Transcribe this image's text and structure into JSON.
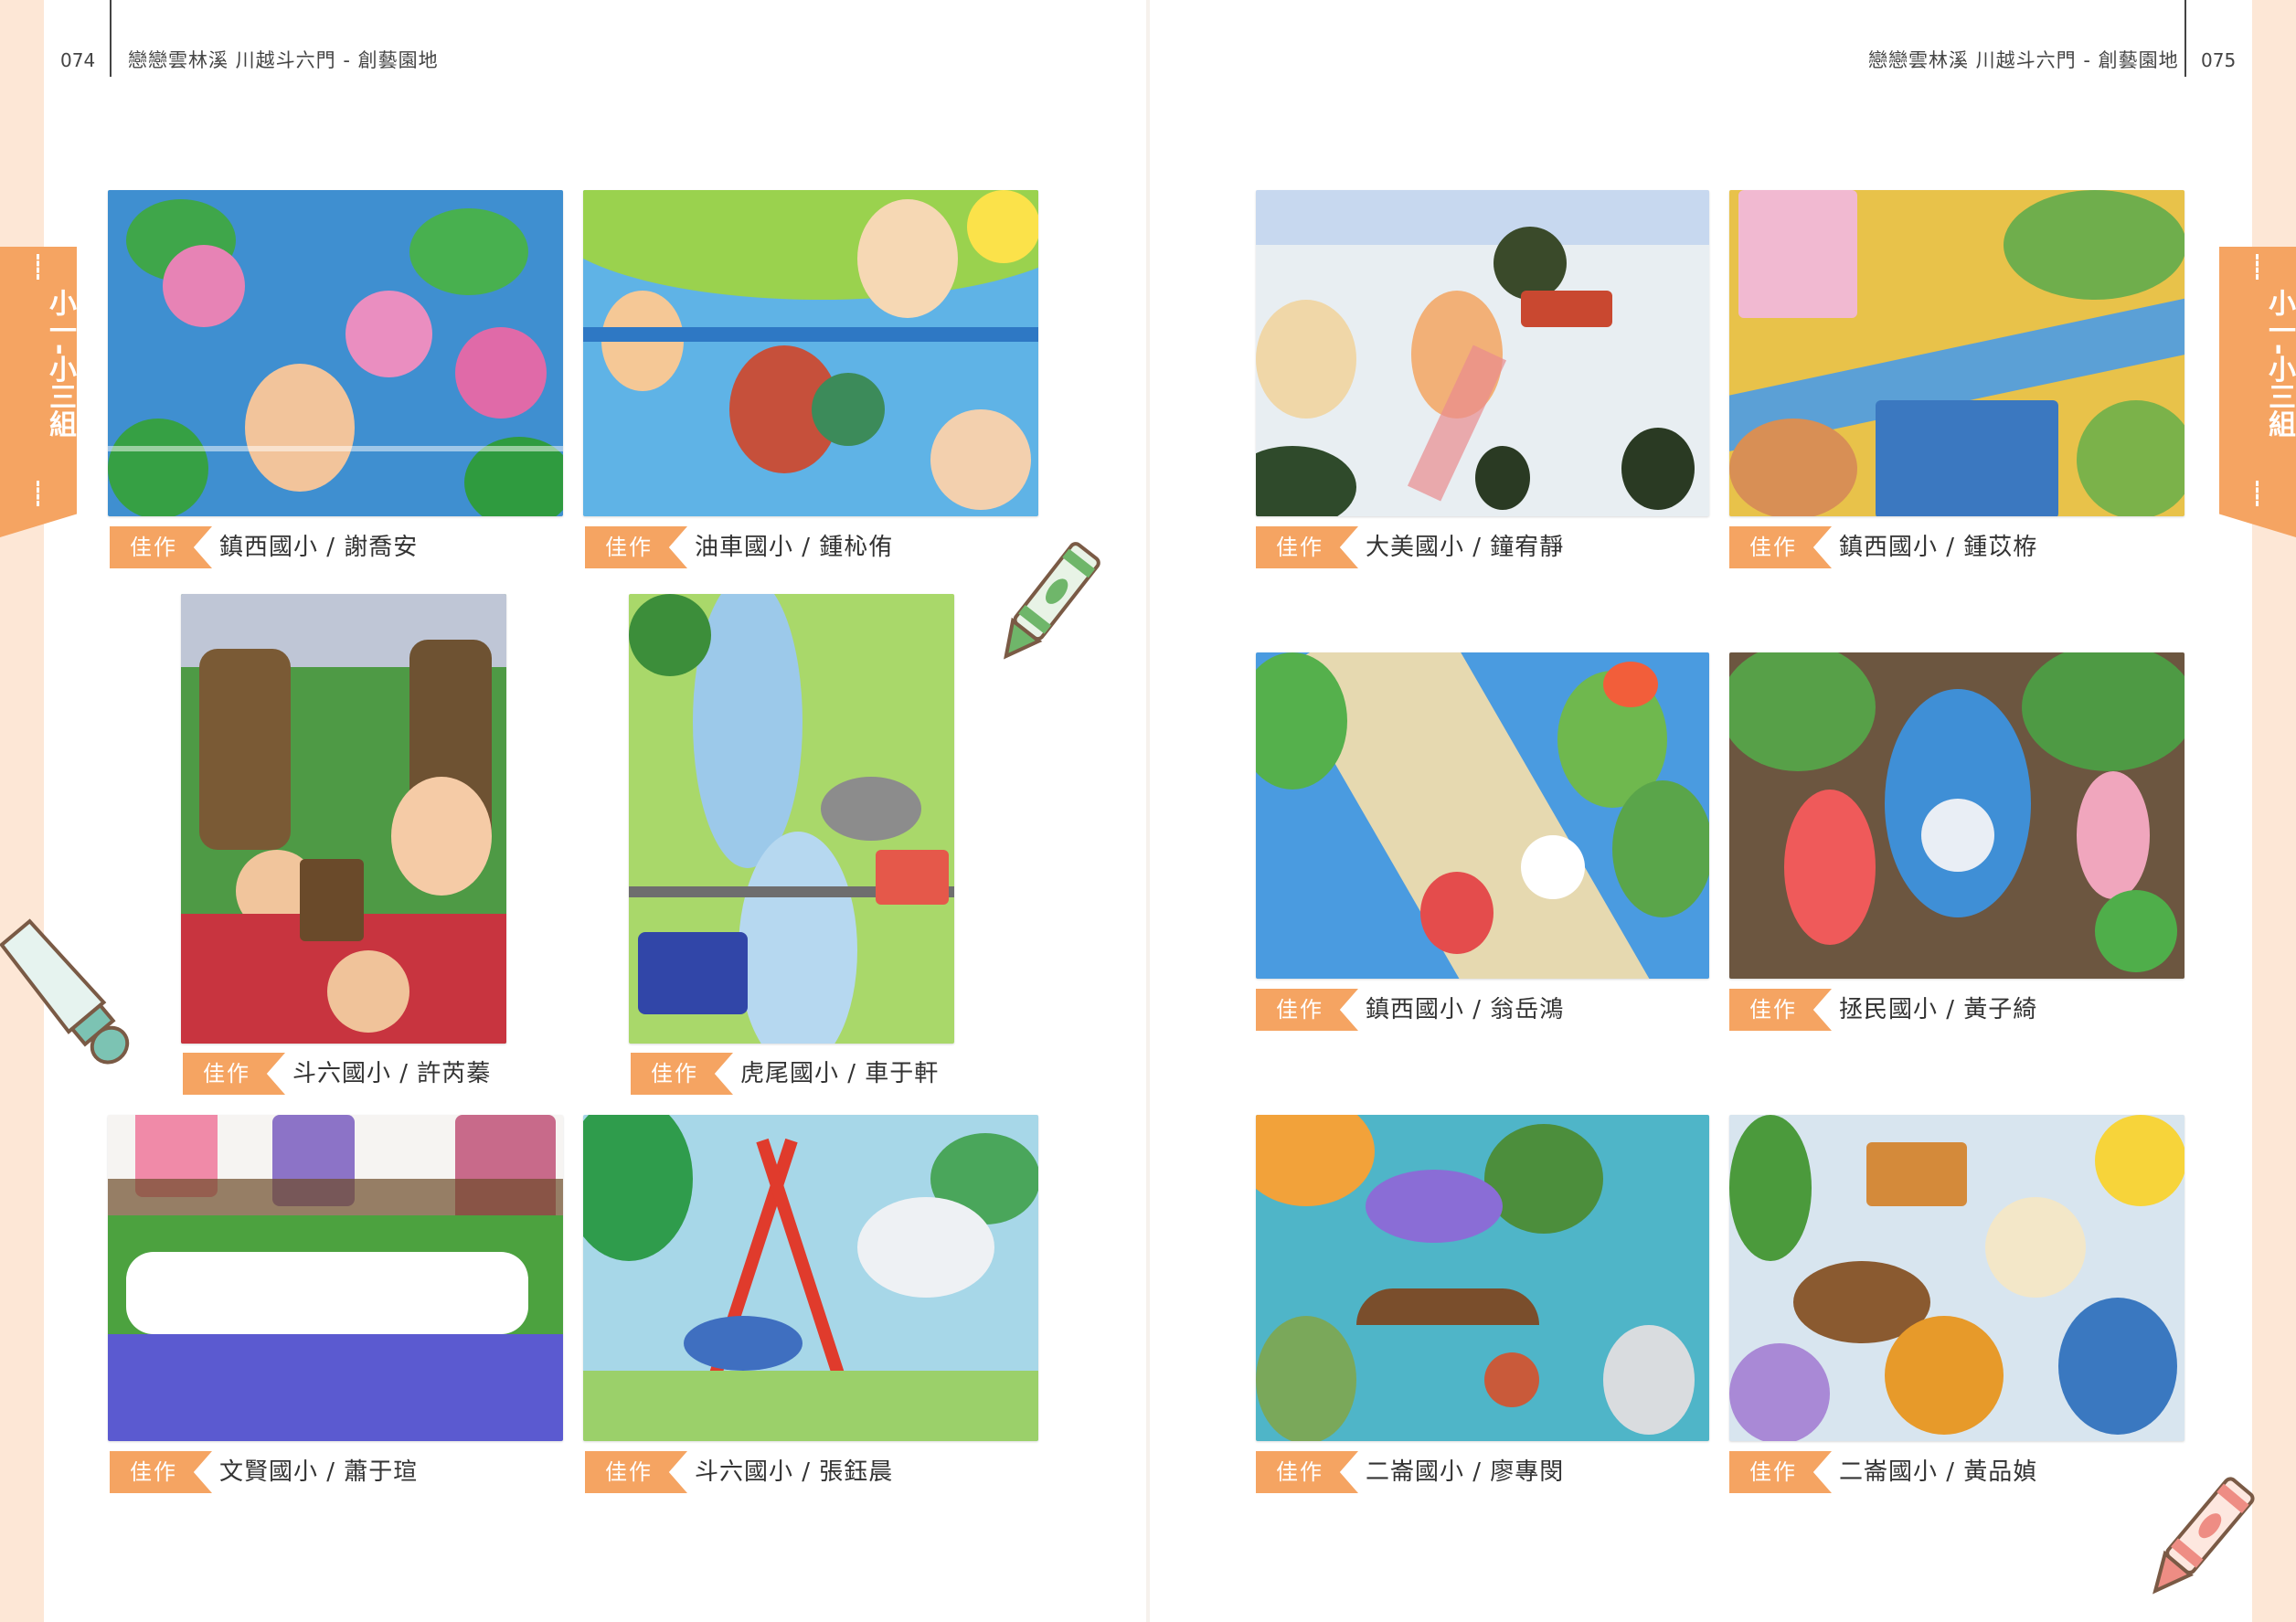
{
  "left_page": {
    "page_number": "074",
    "header": "戀戀雲林溪  川越斗六門 - 創藝園地",
    "side_tab": "小一-小三組",
    "entries": [
      {
        "badge": "佳作",
        "caption": "鎮西國小 / 謝喬安"
      },
      {
        "badge": "佳作",
        "caption": "油車國小 / 鍾杺侑"
      },
      {
        "badge": "佳作",
        "caption": "斗六國小 / 許芮蓁"
      },
      {
        "badge": "佳作",
        "caption": "虎尾國小 / 車于軒"
      },
      {
        "badge": "佳作",
        "caption": "文賢國小 / 蕭于瑄"
      },
      {
        "badge": "佳作",
        "caption": "斗六國小 / 張鈺晨"
      }
    ]
  },
  "right_page": {
    "page_number": "075",
    "header": "戀戀雲林溪  川越斗六門 - 創藝園地",
    "side_tab": "小一-小三組",
    "entries": [
      {
        "badge": "佳作",
        "caption": "大美國小 / 鐘宥靜"
      },
      {
        "badge": "佳作",
        "caption": "鎮西國小 / 鍾苡栫"
      },
      {
        "badge": "佳作",
        "caption": "鎮西國小 / 翁岳鴻"
      },
      {
        "badge": "佳作",
        "caption": "拯民國小 / 黃子綺"
      },
      {
        "badge": "佳作",
        "caption": "二崙國小 / 廖專閔"
      },
      {
        "badge": "佳作",
        "caption": "二崙國小 / 黃品媜"
      }
    ]
  },
  "colors": {
    "accent": "#f5a462",
    "page_background": "#ffffff",
    "margin_background": "#fde7d6"
  },
  "decorations": [
    "crayon-green",
    "paint-tube",
    "crayon-red"
  ]
}
